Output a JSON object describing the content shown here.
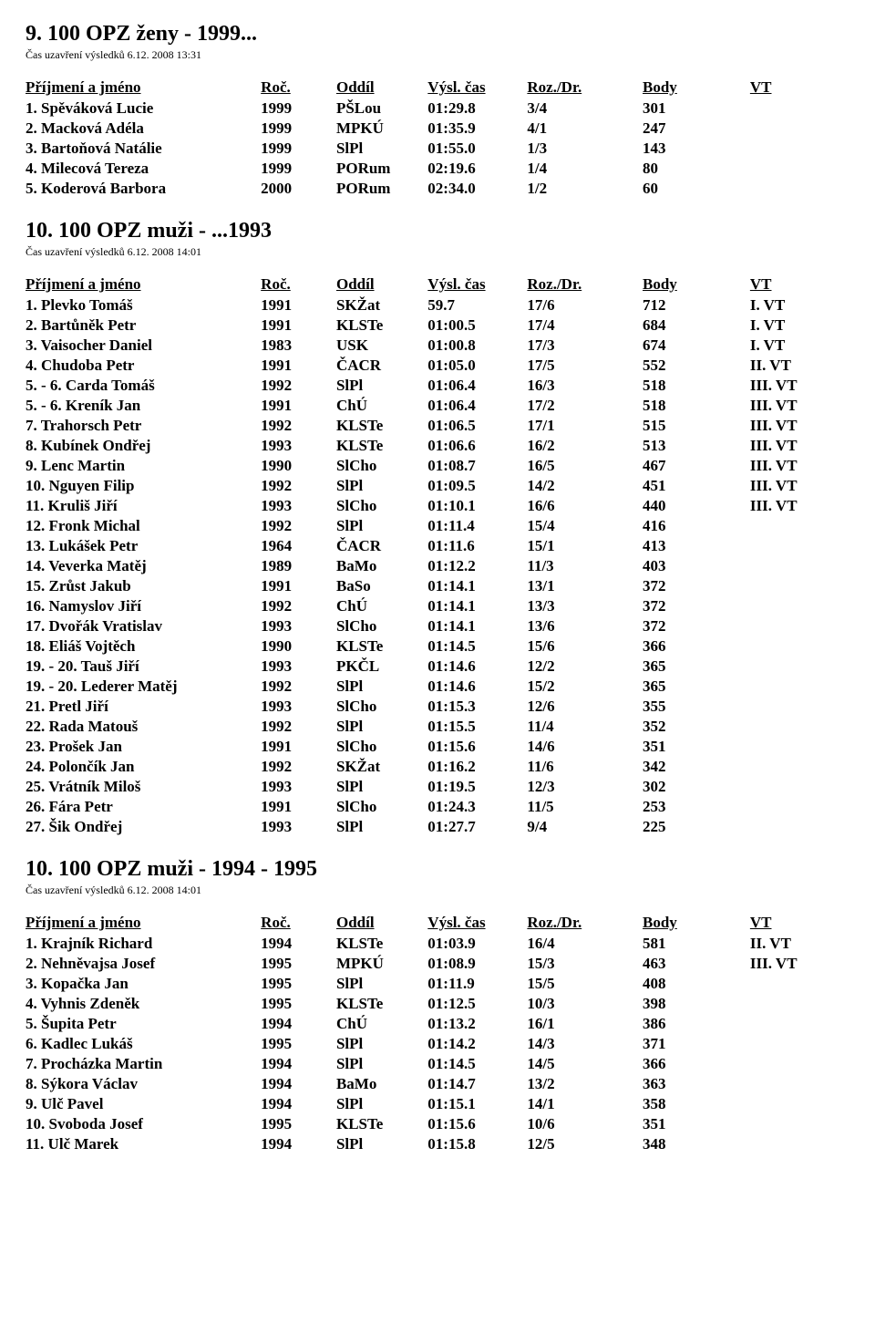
{
  "headers": {
    "name": "Příjmení a jméno",
    "year": "Roč.",
    "club": "Oddíl",
    "time": "Výsl. čas",
    "rd": "Roz./Dr.",
    "pts": "Body",
    "vt": "VT"
  },
  "sections": [
    {
      "title": "9. 100 OPZ ženy - 1999...",
      "timestamp": "Čas uzavření výsledků 6.12. 2008 13:31",
      "rows": [
        {
          "bold": true,
          "cells": [
            "1. Spěváková Lucie",
            "1999",
            "PŠLou",
            "01:29.8",
            "3/4",
            "301",
            ""
          ]
        },
        {
          "bold": true,
          "cells": [
            "2. Macková Adéla",
            "1999",
            "MPKÚ",
            "01:35.9",
            "4/1",
            "247",
            ""
          ]
        },
        {
          "bold": true,
          "cells": [
            "3. Bartoňová Natálie",
            "1999",
            "SlPl",
            "01:55.0",
            "1/3",
            "143",
            ""
          ]
        },
        {
          "bold": true,
          "cells": [
            "4. Milecová Tereza",
            "1999",
            "PORum",
            "02:19.6",
            "1/4",
            "80",
            ""
          ]
        },
        {
          "bold": true,
          "cells": [
            "5. Koderová Barbora",
            "2000",
            "PORum",
            "02:34.0",
            "1/2",
            "60",
            ""
          ]
        }
      ]
    },
    {
      "title": "10. 100 OPZ muži - ...1993",
      "timestamp": "Čas uzavření výsledků 6.12. 2008 14:01",
      "rows": [
        {
          "bold": true,
          "cells": [
            "1. Plevko Tomáš",
            "1991",
            "SKŽat",
            "59.7",
            "17/6",
            "712",
            "I. VT"
          ]
        },
        {
          "bold": true,
          "cells": [
            "2. Bartůněk Petr",
            "1991",
            "KLSTe",
            "01:00.5",
            "17/4",
            "684",
            "I. VT"
          ]
        },
        {
          "bold": true,
          "cells": [
            "3. Vaisocher Daniel",
            "1983",
            "USK",
            "01:00.8",
            "17/3",
            "674",
            "I. VT"
          ]
        },
        {
          "bold": true,
          "cells": [
            "4. Chudoba Petr",
            "1991",
            "ČACR",
            "01:05.0",
            "17/5",
            "552",
            "II. VT"
          ]
        },
        {
          "bold": true,
          "cells": [
            "5. - 6. Carda Tomáš",
            "1992",
            "SlPl",
            "01:06.4",
            "16/3",
            "518",
            "III. VT"
          ]
        },
        {
          "bold": true,
          "cells": [
            "5. - 6. Kreník Jan",
            "1991",
            "ChÚ",
            "01:06.4",
            "17/2",
            "518",
            "III. VT"
          ]
        },
        {
          "bold": true,
          "cells": [
            "7. Trahorsch Petr",
            "1992",
            "KLSTe",
            "01:06.5",
            "17/1",
            "515",
            "III. VT"
          ]
        },
        {
          "bold": true,
          "cells": [
            "8. Kubínek Ondřej",
            "1993",
            "KLSTe",
            "01:06.6",
            "16/2",
            "513",
            "III. VT"
          ]
        },
        {
          "bold": true,
          "cells": [
            "9. Lenc Martin",
            "1990",
            "SlCho",
            "01:08.7",
            "16/5",
            "467",
            "III. VT"
          ]
        },
        {
          "bold": true,
          "cells": [
            "10. Nguyen Filip",
            "1992",
            "SlPl",
            "01:09.5",
            "14/2",
            "451",
            "III. VT"
          ]
        },
        {
          "bold": true,
          "cells": [
            "11. Kruliš Jiří",
            "1993",
            "SlCho",
            "01:10.1",
            "16/6",
            "440",
            "III. VT"
          ]
        },
        {
          "bold": true,
          "cells": [
            "12. Fronk Michal",
            "1992",
            "SlPl",
            "01:11.4",
            "15/4",
            "416",
            ""
          ]
        },
        {
          "bold": true,
          "cells": [
            "13. Lukášek Petr",
            "1964",
            "ČACR",
            "01:11.6",
            "15/1",
            "413",
            ""
          ]
        },
        {
          "bold": true,
          "cells": [
            "14. Veverka Matěj",
            "1989",
            "BaMo",
            "01:12.2",
            "11/3",
            "403",
            ""
          ]
        },
        {
          "bold": true,
          "cells": [
            "15. Zrůst Jakub",
            "1991",
            "BaSo",
            "01:14.1",
            "13/1",
            "372",
            ""
          ]
        },
        {
          "bold": true,
          "cells": [
            "16. Namyslov Jiří",
            "1992",
            "ChÚ",
            "01:14.1",
            "13/3",
            "372",
            ""
          ]
        },
        {
          "bold": true,
          "cells": [
            "17. Dvořák Vratislav",
            "1993",
            "SlCho",
            "01:14.1",
            "13/6",
            "372",
            ""
          ]
        },
        {
          "bold": true,
          "cells": [
            "18. Eliáš Vojtěch",
            "1990",
            "KLSTe",
            "01:14.5",
            "15/6",
            "366",
            ""
          ]
        },
        {
          "bold": true,
          "cells": [
            "19. - 20. Tauš Jiří",
            "1993",
            "PKČL",
            "01:14.6",
            "12/2",
            "365",
            ""
          ]
        },
        {
          "bold": true,
          "cells": [
            "19. - 20. Lederer Matěj",
            "1992",
            "SlPl",
            "01:14.6",
            "15/2",
            "365",
            ""
          ]
        },
        {
          "bold": true,
          "cells": [
            "21. Pretl Jiří",
            "1993",
            "SlCho",
            "01:15.3",
            "12/6",
            "355",
            ""
          ]
        },
        {
          "bold": true,
          "cells": [
            "22. Rada Matouš",
            "1992",
            "SlPl",
            "01:15.5",
            "11/4",
            "352",
            ""
          ]
        },
        {
          "bold": true,
          "cells": [
            "23. Prošek Jan",
            "1991",
            "SlCho",
            "01:15.6",
            "14/6",
            "351",
            ""
          ]
        },
        {
          "bold": true,
          "cells": [
            "24. Polončík Jan",
            "1992",
            "SKŽat",
            "01:16.2",
            "11/6",
            "342",
            ""
          ]
        },
        {
          "bold": true,
          "cells": [
            "25. Vrátník Miloš",
            "1993",
            "SlPl",
            "01:19.5",
            "12/3",
            "302",
            ""
          ]
        },
        {
          "bold": true,
          "cells": [
            "26. Fára Petr",
            "1991",
            "SlCho",
            "01:24.3",
            "11/5",
            "253",
            ""
          ]
        },
        {
          "bold": true,
          "cells": [
            "27. Šik Ondřej",
            "1993",
            "SlPl",
            "01:27.7",
            "9/4",
            "225",
            ""
          ]
        }
      ]
    },
    {
      "title": "10. 100 OPZ muži - 1994 - 1995",
      "timestamp": "Čas uzavření výsledků 6.12. 2008 14:01",
      "rows": [
        {
          "bold": true,
          "cells": [
            "1. Krajník Richard",
            "1994",
            "KLSTe",
            "01:03.9",
            "16/4",
            "581",
            "II. VT"
          ]
        },
        {
          "bold": true,
          "cells": [
            "2. Nehněvajsa Josef",
            "1995",
            "MPKÚ",
            "01:08.9",
            "15/3",
            "463",
            "III. VT"
          ]
        },
        {
          "bold": true,
          "cells": [
            "3. Kopačka Jan",
            "1995",
            "SlPl",
            "01:11.9",
            "15/5",
            "408",
            ""
          ]
        },
        {
          "bold": true,
          "cells": [
            "4. Vyhnis Zdeněk",
            "1995",
            "KLSTe",
            "01:12.5",
            "10/3",
            "398",
            ""
          ]
        },
        {
          "bold": true,
          "cells": [
            "5. Šupita Petr",
            "1994",
            "ChÚ",
            "01:13.2",
            "16/1",
            "386",
            ""
          ]
        },
        {
          "bold": true,
          "cells": [
            "6. Kadlec Lukáš",
            "1995",
            "SlPl",
            "01:14.2",
            "14/3",
            "371",
            ""
          ]
        },
        {
          "bold": true,
          "cells": [
            "7. Procházka Martin",
            "1994",
            "SlPl",
            "01:14.5",
            "14/5",
            "366",
            ""
          ]
        },
        {
          "bold": true,
          "cells": [
            "8. Sýkora Václav",
            "1994",
            "BaMo",
            "01:14.7",
            "13/2",
            "363",
            ""
          ]
        },
        {
          "bold": true,
          "cells": [
            "9. Ulč Pavel",
            "1994",
            "SlPl",
            "01:15.1",
            "14/1",
            "358",
            ""
          ]
        },
        {
          "bold": true,
          "cells": [
            "10. Svoboda Josef",
            "1995",
            "KLSTe",
            "01:15.6",
            "10/6",
            "351",
            ""
          ]
        },
        {
          "bold": true,
          "cells": [
            "11. Ulč Marek",
            "1994",
            "SlPl",
            "01:15.8",
            "12/5",
            "348",
            ""
          ]
        }
      ]
    }
  ]
}
